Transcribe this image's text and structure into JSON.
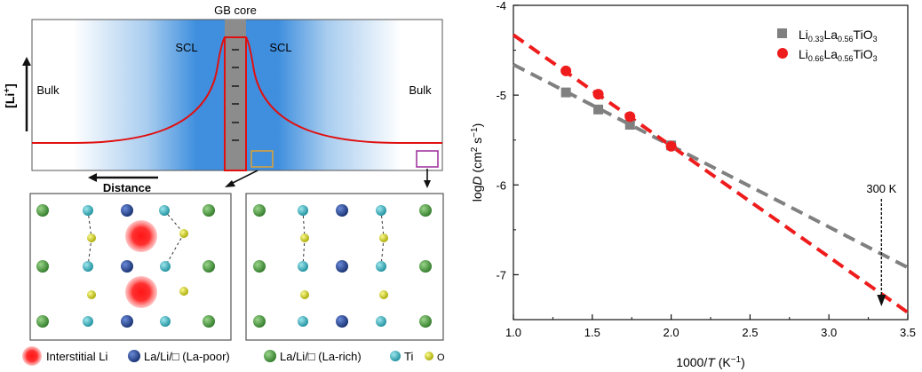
{
  "schematic": {
    "gb_core_label": "GB core",
    "scl_left": "SCL",
    "scl_right": "SCL",
    "bulk_left": "Bulk",
    "bulk_right": "Bulk",
    "yaxis_label": "[Li",
    "yaxis_sup": "+",
    "yaxis_close": "]",
    "distance_label": "Distance"
  },
  "legend": {
    "interstitial": "Interstitial Li",
    "la_poor": "La/Li/□ (La-poor)",
    "la_rich": "La/Li/□ (La-rich)",
    "ti": "Ti",
    "o": "O"
  },
  "colors": {
    "profile_line": "#e01010",
    "scl_blue": "#3f8fde",
    "gb_core": "#8c8c8c",
    "la_rich": "#3a8a32",
    "la_poor": "#1f3f8f",
    "ti": "#2fb0bf",
    "o": "#d0d010",
    "interstitial": "#ff2020",
    "series_033": "#808080",
    "series_066": "#ee1c1c",
    "orange_box": "#e0a030",
    "purple_box": "#9a2a9a"
  },
  "chart_data": {
    "type": "scatter",
    "xlabel_pre": "1000/",
    "xlabel_it": "T",
    "xlabel_post": " (K",
    "xlabel_sup": "−1",
    "xlabel_close": ")",
    "ylabel_pre": "log",
    "ylabel_it": "D",
    "ylabel_post": " (cm",
    "ylabel_sup1": "2",
    "ylabel_mid": " s",
    "ylabel_sup2": "−1",
    "ylabel_close": ")",
    "xlim": [
      1.0,
      3.5
    ],
    "ylim": [
      -7.5,
      -4.0
    ],
    "xticks": [
      "1.0",
      "1.5",
      "2.0",
      "2.5",
      "3.0",
      "3.5"
    ],
    "yticks": [
      "-4",
      "-5",
      "-6",
      "-7"
    ],
    "annotation": "300 K",
    "annotation_x": 3.333,
    "legend_position": "top-right",
    "series": [
      {
        "name_parts": [
          "Li",
          "0.33",
          "La",
          "0.56",
          "TiO",
          "3"
        ],
        "marker": "square",
        "color": "#808080",
        "x": [
          1.333,
          1.538,
          1.739,
          2.0
        ],
        "y": [
          -4.97,
          -5.16,
          -5.33,
          -5.56
        ],
        "fit": {
          "x": [
            1.0,
            3.5
          ],
          "y": [
            -4.66,
            -6.92
          ]
        }
      },
      {
        "name_parts": [
          "Li",
          "0.66",
          "La",
          "0.56",
          "TiO",
          "3"
        ],
        "marker": "circle",
        "color": "#ee1c1c",
        "x": [
          1.333,
          1.538,
          1.739,
          2.0
        ],
        "y": [
          -4.73,
          -4.99,
          -5.24,
          -5.57
        ],
        "fit": {
          "x": [
            1.0,
            3.5
          ],
          "y": [
            -4.33,
            -7.42
          ]
        }
      }
    ]
  }
}
